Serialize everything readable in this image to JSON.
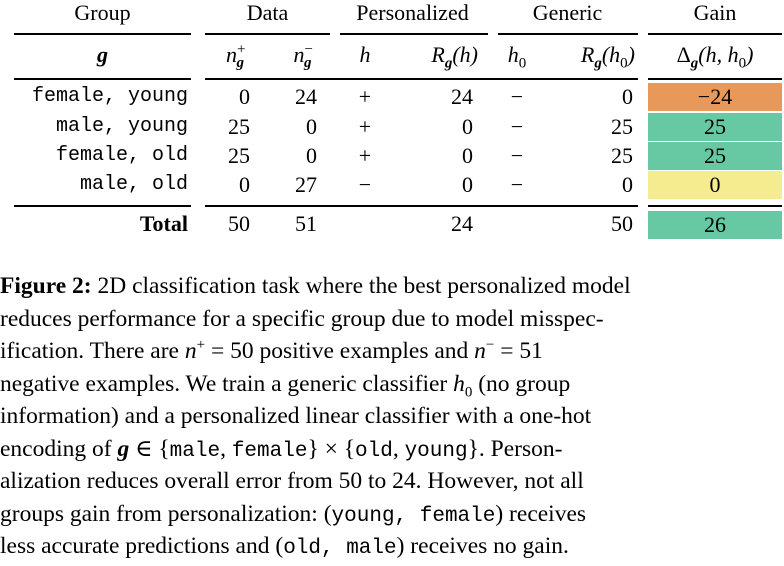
{
  "table": {
    "group_headers": {
      "group": "Group",
      "data": "Data",
      "personalized": "Personalized",
      "generic": "Generic",
      "gain": "Gain"
    },
    "subheaders": {
      "g": "g",
      "n_pos": "n",
      "n_pos_sup": "+",
      "n_pos_sub": "g",
      "n_neg": "n",
      "n_neg_sup": "−",
      "n_neg_sub": "g",
      "h": "h",
      "R_h": "R",
      "R_h_sub": "g",
      "R_h_arg": "(h)",
      "h0": "h",
      "h0_sub": "0",
      "R_h0": "R",
      "R_h0_sub": "g",
      "R_h0_arg": "(h",
      "R_h0_arg_sub": "0",
      "R_h0_arg_close": ")",
      "delta": "Δ",
      "delta_sub": "g",
      "delta_arg": "(h, h",
      "delta_arg_sub": "0",
      "delta_arg_close": ")"
    },
    "rows": [
      {
        "group": "female, young",
        "n_pos": "0",
        "n_neg": "24",
        "h": "+",
        "R_h": "24",
        "h0": "−",
        "R_h0": "0",
        "gain": "−24",
        "gain_color": "#e8995a"
      },
      {
        "group": "male, young",
        "n_pos": "25",
        "n_neg": "0",
        "h": "+",
        "R_h": "0",
        "h0": "−",
        "R_h0": "25",
        "gain": "25",
        "gain_color": "#67c8a4"
      },
      {
        "group": "female, old",
        "n_pos": "25",
        "n_neg": "0",
        "h": "+",
        "R_h": "0",
        "h0": "−",
        "R_h0": "25",
        "gain": "25",
        "gain_color": "#67c8a4"
      },
      {
        "group": "male, old",
        "n_pos": "0",
        "n_neg": "27",
        "h": "−",
        "R_h": "0",
        "h0": "−",
        "R_h0": "0",
        "gain": "0",
        "gain_color": "#f4ec8e"
      }
    ],
    "total": {
      "label": "Total",
      "n_pos": "50",
      "n_neg": "51",
      "R_h": "24",
      "R_h0": "50",
      "gain": "26",
      "gain_color": "#67c8a4"
    }
  },
  "caption": {
    "figure_label": "Figure 2:",
    "l1": "2D classification task where the best personalized model",
    "l2": "reduces performance for a specific group due to model misspec-",
    "l3a": "ification.  There are ",
    "l3_n": "n",
    "l3_sup": "+",
    "l3_eq": " = 50 positive examples and ",
    "l3_n2": "n",
    "l3_sup2": "−",
    "l3_eq2": " = 51",
    "l4a": "negative examples.  We train a generic classifier ",
    "l4_h": "h",
    "l4_sub": "0",
    "l4b": " (no group",
    "l5": "information) and a personalized linear classifier with a one-hot",
    "l6a": "encoding of ",
    "l6_g": "g",
    "l6_in": " ∈ {",
    "l6_male": "male",
    "l6_comma1": ", ",
    "l6_female": "female",
    "l6_times": "} × {",
    "l6_old": "old",
    "l6_comma2": ", ",
    "l6_young": "young",
    "l6b": "}.  Person-",
    "l7": "alization reduces overall error from 50 to 24.  However, not all",
    "l8a": "groups gain from personalization: (",
    "l8_tt": "young,  female",
    "l8b": ") receives",
    "l9a": "less accurate predictions and (",
    "l9_tt": "old,  male",
    "l9b": ") receives no gain."
  }
}
